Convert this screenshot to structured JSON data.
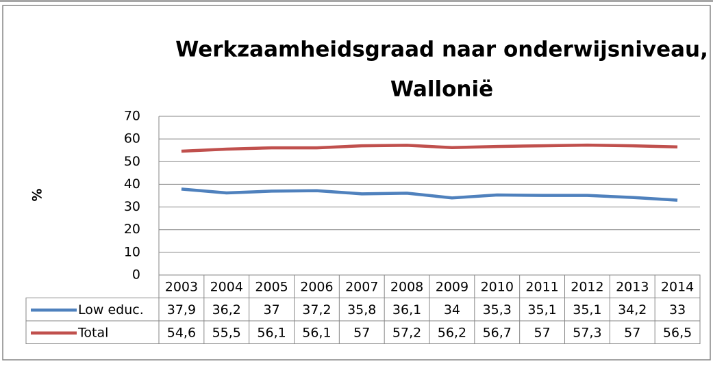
{
  "chart_data": {
    "type": "line",
    "title": [
      "Werkzaamheidsgraad naar onderwijsniveau,",
      "Wallonië"
    ],
    "y_label": "%",
    "categories": [
      "2003",
      "2004",
      "2005",
      "2006",
      "2007",
      "2008",
      "2009",
      "2010",
      "2011",
      "2012",
      "2013",
      "2014"
    ],
    "series": [
      {
        "name": "Low educ.",
        "color": "#4f81bd",
        "values": [
          37.9,
          36.2,
          37,
          37.2,
          35.8,
          36.1,
          34,
          35.3,
          35.1,
          35.1,
          34.2,
          33
        ],
        "value_labels": [
          "37,9",
          "36,2",
          "37",
          "37,2",
          "35,8",
          "36,1",
          "34",
          "35,3",
          "35,1",
          "35,1",
          "34,2",
          "33"
        ]
      },
      {
        "name": "Total",
        "color": "#c0504d",
        "values": [
          54.6,
          55.5,
          56.1,
          56.1,
          57,
          57.2,
          56.2,
          56.7,
          57,
          57.3,
          57,
          56.5
        ],
        "value_labels": [
          "54,6",
          "55,5",
          "56,1",
          "56,1",
          "57",
          "57,2",
          "56,2",
          "56,7",
          "57",
          "57,3",
          "57",
          "56,5"
        ]
      }
    ],
    "ylim": [
      0,
      70
    ],
    "yticks": [
      0,
      10,
      20,
      30,
      40,
      50,
      60,
      70
    ],
    "grid": true
  }
}
